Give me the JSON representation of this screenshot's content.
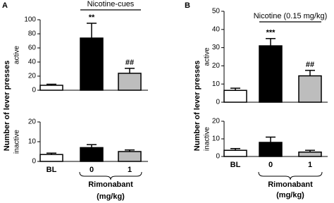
{
  "panels": [
    {
      "label": "A",
      "ylabel": "Number of lever presses",
      "xlabel": "Rimonabant",
      "xlabel_unit": "(mg/kg)"
    },
    {
      "label": "B",
      "ylabel": "Number of lever presses",
      "xlabel": "Rimonabant",
      "xlabel_unit": "(mg/kg)"
    }
  ],
  "chart_data": [
    {
      "type": "bar",
      "ylabel": "active",
      "categories": [
        null,
        null,
        null
      ],
      "values": [
        7,
        74,
        24
      ],
      "errors": [
        1.5,
        21,
        7
      ],
      "colors": [
        "#ffffff",
        "#000000",
        "#bdbdbd"
      ],
      "annotations": [
        null,
        "**",
        "##"
      ],
      "bracket_label": "Nicotine-cues",
      "ylim": [
        0,
        100
      ],
      "yticks": [
        0,
        20,
        40,
        60,
        80,
        100
      ]
    },
    {
      "type": "bar",
      "ylabel": "inactive",
      "categories": [
        "BL",
        "0",
        "1"
      ],
      "values": [
        3.5,
        7,
        5
      ],
      "errors": [
        0.7,
        1.5,
        0.8
      ],
      "colors": [
        "#ffffff",
        "#000000",
        "#bdbdbd"
      ],
      "ylim": [
        0,
        20
      ],
      "yticks": [
        0,
        10,
        20
      ]
    },
    {
      "type": "bar",
      "ylabel": "active",
      "categories": [
        null,
        null,
        null
      ],
      "values": [
        6.5,
        31,
        14.5
      ],
      "errors": [
        1.2,
        4,
        3
      ],
      "colors": [
        "#ffffff",
        "#000000",
        "#bdbdbd"
      ],
      "annotations": [
        null,
        "***",
        "##"
      ],
      "bracket_label": "Nicotine (0.15 mg/kg)",
      "ylim": [
        0,
        50
      ],
      "yticks": [
        0,
        10,
        20,
        30,
        40,
        50
      ]
    },
    {
      "type": "bar",
      "ylabel": "inactive",
      "categories": [
        "BL",
        "0",
        "1"
      ],
      "values": [
        3.5,
        8,
        2.5
      ],
      "errors": [
        1,
        3,
        1
      ],
      "colors": [
        "#ffffff",
        "#000000",
        "#bdbdbd"
      ],
      "ylim": [
        0,
        20
      ],
      "yticks": [
        0,
        10,
        20
      ]
    }
  ]
}
